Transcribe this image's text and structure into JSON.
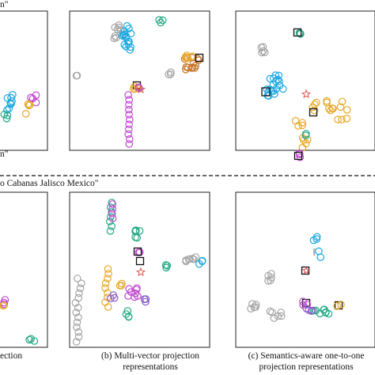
{
  "figure": {
    "top_query_fragment": "n\"",
    "top_query_tail": "n\"",
    "bottom_query": "o Cabanas Jalisco Mexico\"",
    "captions": {
      "a": "ection",
      "b_line1": "(b) Multi-vector projection",
      "b_line2": "representations",
      "c_line1": "(c) Semantics-aware one-to-one",
      "c_line2": "projection representations"
    },
    "colors": {
      "gray": "#a6a6a6",
      "blue": "#1aa7e0",
      "teal": "#22a884",
      "orange": "#e8a92a",
      "brown": "#c8742a",
      "magenta": "#c04bd0",
      "purple": "#8a5ec8",
      "red_star": "#d9534f",
      "box": "#111111"
    }
  }
}
